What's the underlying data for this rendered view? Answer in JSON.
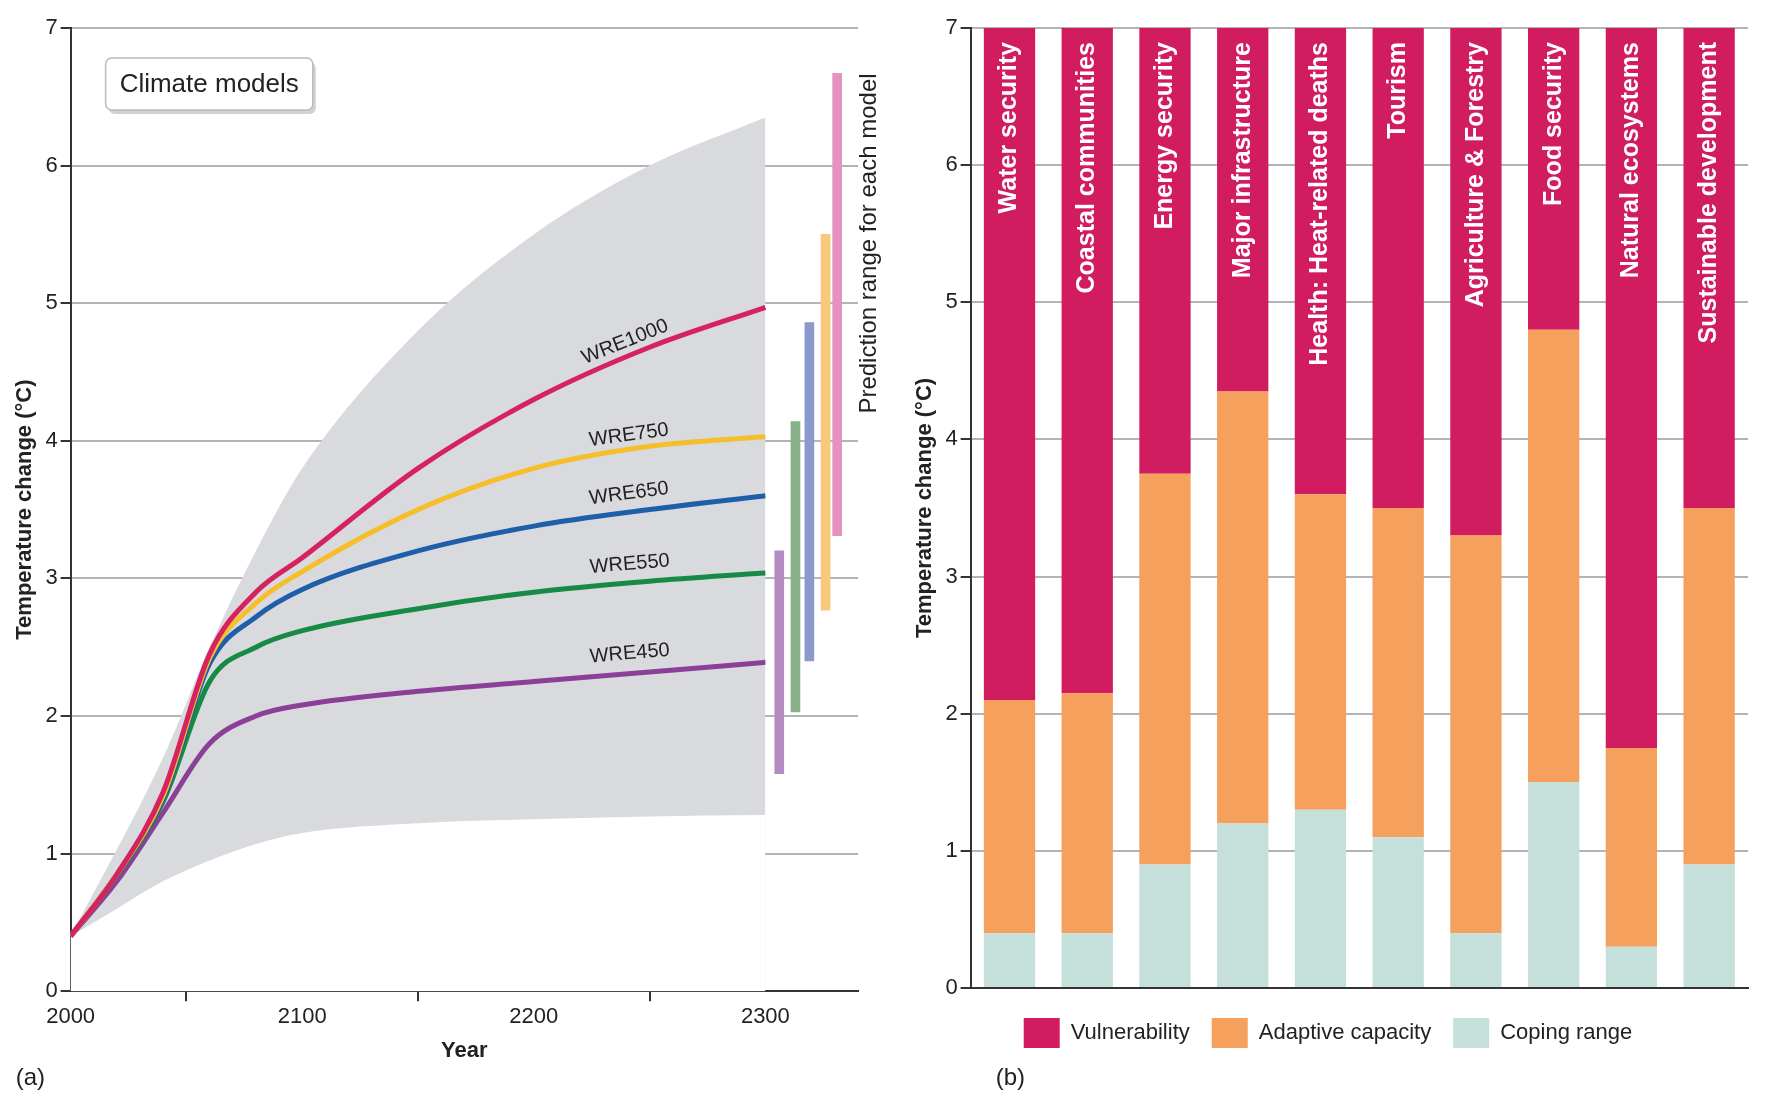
{
  "chart_data": [
    {
      "type": "line",
      "xlabel": "Year",
      "ylabel": "Temperature change (°C)",
      "x": [
        2000,
        2020,
        2040,
        2060,
        2080,
        2100,
        2150,
        2200,
        2250,
        2300
      ],
      "xlim": [
        2000,
        2340
      ],
      "xticks": [
        2000,
        2100,
        2200,
        2300
      ],
      "ylim": [
        0,
        7
      ],
      "yticks": [
        0,
        1,
        2,
        3,
        4,
        5,
        6,
        7
      ],
      "grid": "y",
      "series": [
        {
          "type": "area",
          "color": "#d9dadd",
          "values": [
            0.4,
            null,
            1.7,
            2.5,
            3.2,
            3.8,
            4.8,
            5.5,
            6.0,
            6.35
          ]
        },
        {
          "type": "area",
          "color": "#ffffff",
          "values": [
            0.4,
            0.6,
            0.8,
            0.95,
            1.07,
            1.15,
            1.22,
            1.25,
            1.27,
            1.28
          ]
        },
        {
          "name": "WRE1000",
          "color": "#d6225e",
          "values": [
            0.4,
            0.85,
            1.45,
            2.45,
            2.9,
            3.15,
            3.8,
            4.3,
            4.68,
            4.97
          ]
        },
        {
          "name": "WRE750",
          "color": "#f7be2c",
          "values": [
            0.4,
            0.85,
            1.42,
            2.42,
            2.82,
            3.05,
            3.5,
            3.8,
            3.96,
            4.03
          ]
        },
        {
          "name": "WRE650",
          "color": "#1f5ea8",
          "values": [
            0.4,
            0.85,
            1.4,
            2.38,
            2.72,
            2.92,
            3.2,
            3.38,
            3.5,
            3.6
          ]
        },
        {
          "name": "WRE550",
          "color": "#178a46",
          "values": [
            0.4,
            0.84,
            1.38,
            2.25,
            2.5,
            2.62,
            2.78,
            2.9,
            2.98,
            3.04
          ]
        },
        {
          "name": "WRE450",
          "color": "#8b3f97",
          "values": [
            0.4,
            0.8,
            1.3,
            1.8,
            2.0,
            2.08,
            2.18,
            2.25,
            2.32,
            2.39
          ]
        },
        {
          "type": "bar",
          "x": [
            2306,
            2313,
            2319,
            2326,
            2331
          ],
          "base": [
            1.58,
            2.03,
            2.4,
            2.77,
            3.31
          ],
          "values": [
            1.62,
            2.11,
            2.46,
            2.73,
            3.36
          ],
          "colors": [
            "#b48ac0",
            "#88b08a",
            "#8a9acb",
            "#f7c979",
            "#e691be"
          ]
        }
      ],
      "annotations": [
        "Climate models",
        "Prediction range for each model",
        "(a)"
      ]
    },
    {
      "type": "bar",
      "stacked": true,
      "ylabel": "Temperature change (°C)",
      "ylim": [
        0,
        7
      ],
      "yticks": [
        0,
        1,
        2,
        3,
        4,
        5,
        6,
        7
      ],
      "grid": "y",
      "legend": "bottom",
      "tick_labels": "y",
      "categories": [
        "Water security",
        "Coastal communities",
        "Energy security",
        "Major infrastructure",
        "Health: Heat-related deaths",
        "Tourism",
        "Agriculture & Forestry",
        "Food security",
        "Natural ecosystems",
        "Sustainable development"
      ],
      "series": [
        {
          "name": "Coping range",
          "color": "#c5dfdb",
          "values": [
            0.4,
            0.4,
            0.9,
            1.2,
            1.3,
            1.1,
            0.4,
            1.5,
            0.3,
            0.9
          ]
        },
        {
          "name": "Adaptive capacity",
          "color": "#f5a05d",
          "values": [
            1.7,
            1.75,
            2.85,
            3.15,
            2.3,
            2.4,
            2.9,
            3.3,
            1.45,
            2.6
          ]
        },
        {
          "name": "Vulnerability",
          "color": "#d11c5f",
          "values": [
            4.9,
            4.85,
            3.25,
            2.65,
            3.4,
            3.5,
            3.7,
            2.2,
            5.25,
            3.5
          ]
        }
      ],
      "annotations": [
        "(b)"
      ]
    }
  ]
}
